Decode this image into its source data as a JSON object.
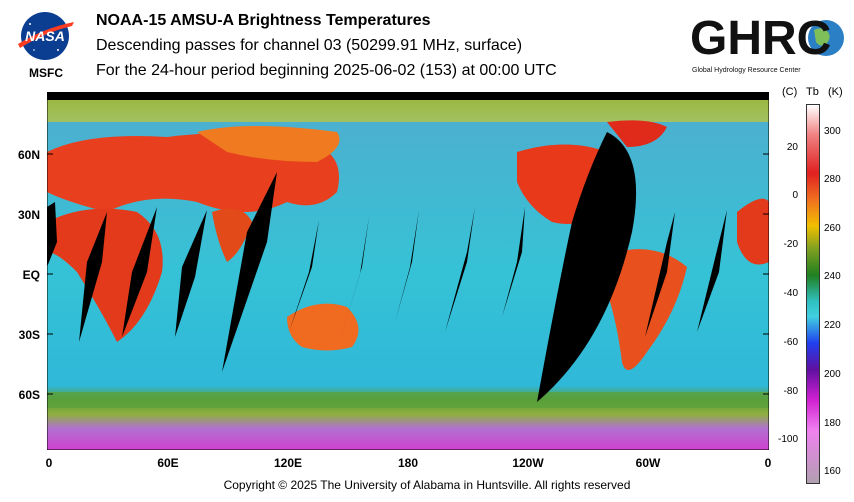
{
  "header": {
    "title": "NOAA-15 AMSU-A Brightness Temperatures",
    "subtitle": "Descending passes for channel 03 (50299.91 MHz, surface)",
    "period": "For the 24-hour period beginning 2025-06-02 (153) at 00:00 UTC"
  },
  "logos": {
    "left_caption": "MSFC",
    "nasa_text": "NASA",
    "ghrc_text": "GHRC",
    "ghrc_caption": "Global Hydrology Resource Center"
  },
  "map": {
    "lat_labels": [
      "60N",
      "30N",
      "EQ",
      "30S",
      "60S"
    ],
    "lon_labels": [
      "0",
      "60E",
      "120E",
      "180",
      "120W",
      "60W",
      "0"
    ]
  },
  "colorbar": {
    "unit_c": "(C)",
    "unit_tb": "Tb",
    "unit_k": "(K)",
    "kelvin_ticks": [
      "300",
      "280",
      "260",
      "240",
      "220",
      "200",
      "180",
      "160"
    ],
    "celsius_ticks": [
      "20",
      "0",
      "-20",
      "-40",
      "-60",
      "-80",
      "-100"
    ]
  },
  "footer": {
    "copyright": "Copyright © 2025 The University of Alabama in Huntsville.  All rights reserved"
  }
}
